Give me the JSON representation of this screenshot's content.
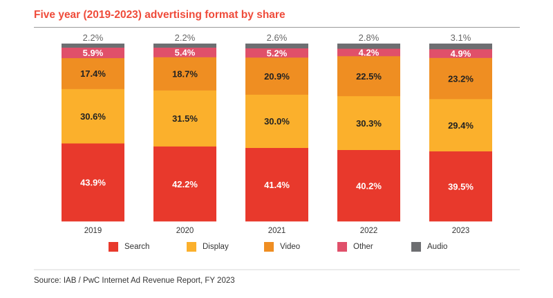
{
  "chart_data": {
    "type": "bar",
    "stacked": true,
    "title": "Five year (2019-2023) advertising format by share",
    "categories": [
      "2019",
      "2020",
      "2021",
      "2022",
      "2023"
    ],
    "series": [
      {
        "name": "Search",
        "color": "#e8392c",
        "values": [
          43.9,
          42.2,
          41.4,
          40.2,
          39.5
        ]
      },
      {
        "name": "Display",
        "color": "#fbb02c",
        "values": [
          30.6,
          31.5,
          30.0,
          30.3,
          29.4
        ]
      },
      {
        "name": "Video",
        "color": "#ef8e22",
        "values": [
          17.4,
          18.7,
          20.9,
          22.5,
          23.2
        ]
      },
      {
        "name": "Other",
        "color": "#e0506a",
        "values": [
          5.9,
          5.4,
          5.2,
          4.2,
          4.9
        ]
      },
      {
        "name": "Audio",
        "color": "#6d6e71",
        "values": [
          2.2,
          2.2,
          2.6,
          2.8,
          3.1
        ]
      }
    ],
    "ylim": [
      0,
      100
    ],
    "unit": "%",
    "legend_position": "bottom",
    "grid": false
  },
  "source": "Source: IAB / PwC Internet Ad Revenue Report, FY 2023"
}
